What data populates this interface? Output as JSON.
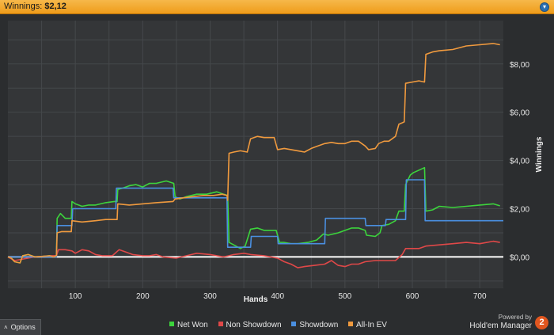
{
  "window": {
    "title_label": "Winnings:",
    "title_value": "$2,12",
    "help_icon": "info-icon"
  },
  "options": {
    "label": "Options",
    "icon": "chevron-up-icon"
  },
  "powered": {
    "line1": "Powered by",
    "line2": "Hold'em Manager",
    "logo_text": "2"
  },
  "chart_data": {
    "type": "line",
    "xlabel": "Hands",
    "ylabel": "Winnings",
    "xlim": [
      0,
      735
    ],
    "ylim": [
      -1.3,
      9.8
    ],
    "xticks": [
      100,
      200,
      300,
      400,
      500,
      600,
      700
    ],
    "yticks": [
      {
        "value": 0,
        "label": "$0,00"
      },
      {
        "value": 2,
        "label": "$2,00"
      },
      {
        "value": 4,
        "label": "$4,00"
      },
      {
        "value": 6,
        "label": "$6,00"
      },
      {
        "value": 8,
        "label": "$8,00"
      }
    ],
    "grid": true,
    "legend_position": "bottom",
    "series": [
      {
        "name": "Net Won",
        "color": "#3cd43c",
        "points": [
          [
            0,
            0
          ],
          [
            5,
            -0.05
          ],
          [
            10,
            -0.2
          ],
          [
            18,
            -0.25
          ],
          [
            22,
            0.05
          ],
          [
            30,
            0.1
          ],
          [
            40,
            0
          ],
          [
            50,
            0.02
          ],
          [
            62,
            0.05
          ],
          [
            68,
            0
          ],
          [
            72,
            0.05
          ],
          [
            73,
            1.6
          ],
          [
            78,
            1.8
          ],
          [
            85,
            1.6
          ],
          [
            94,
            1.6
          ],
          [
            95,
            2.3
          ],
          [
            100,
            2.2
          ],
          [
            110,
            2.1
          ],
          [
            120,
            2.15
          ],
          [
            130,
            2.15
          ],
          [
            145,
            2.25
          ],
          [
            158,
            2.3
          ],
          [
            162,
            2.3
          ],
          [
            163,
            2.8
          ],
          [
            170,
            2.85
          ],
          [
            180,
            2.95
          ],
          [
            190,
            3.0
          ],
          [
            200,
            2.9
          ],
          [
            210,
            3.05
          ],
          [
            220,
            3.05
          ],
          [
            235,
            3.15
          ],
          [
            246,
            3.05
          ],
          [
            248,
            2.5
          ],
          [
            255,
            2.4
          ],
          [
            265,
            2.5
          ],
          [
            280,
            2.6
          ],
          [
            295,
            2.6
          ],
          [
            310,
            2.7
          ],
          [
            320,
            2.6
          ],
          [
            326,
            2.55
          ],
          [
            328,
            0.6
          ],
          [
            335,
            0.5
          ],
          [
            345,
            0.35
          ],
          [
            352,
            0.45
          ],
          [
            360,
            1.15
          ],
          [
            370,
            1.2
          ],
          [
            380,
            1.1
          ],
          [
            398,
            1.1
          ],
          [
            403,
            0.6
          ],
          [
            410,
            0.6
          ],
          [
            420,
            0.55
          ],
          [
            430,
            0.55
          ],
          [
            445,
            0.6
          ],
          [
            458,
            0.7
          ],
          [
            468,
            0.95
          ],
          [
            475,
            0.9
          ],
          [
            490,
            1.0
          ],
          [
            500,
            1.1
          ],
          [
            510,
            1.2
          ],
          [
            520,
            1.2
          ],
          [
            530,
            1.1
          ],
          [
            532,
            0.9
          ],
          [
            545,
            0.85
          ],
          [
            552,
            1.0
          ],
          [
            555,
            1.3
          ],
          [
            565,
            1.35
          ],
          [
            575,
            1.5
          ],
          [
            580,
            1.9
          ],
          [
            588,
            1.9
          ],
          [
            590,
            3.0
          ],
          [
            597,
            3.4
          ],
          [
            602,
            3.5
          ],
          [
            610,
            3.6
          ],
          [
            618,
            3.7
          ],
          [
            620,
            1.9
          ],
          [
            630,
            1.95
          ],
          [
            640,
            2.1
          ],
          [
            660,
            2.05
          ],
          [
            680,
            2.1
          ],
          [
            700,
            2.15
          ],
          [
            720,
            2.2
          ],
          [
            730,
            2.12
          ]
        ]
      },
      {
        "name": "Non Showdown",
        "color": "#e04848",
        "points": [
          [
            0,
            0
          ],
          [
            10,
            -0.15
          ],
          [
            20,
            -0.1
          ],
          [
            40,
            0
          ],
          [
            65,
            0.05
          ],
          [
            72,
            0.05
          ],
          [
            75,
            0.3
          ],
          [
            85,
            0.3
          ],
          [
            95,
            0.25
          ],
          [
            100,
            0.15
          ],
          [
            110,
            0.3
          ],
          [
            120,
            0.25
          ],
          [
            130,
            0.1
          ],
          [
            140,
            0.05
          ],
          [
            155,
            0.05
          ],
          [
            165,
            0.3
          ],
          [
            175,
            0.2
          ],
          [
            185,
            0.1
          ],
          [
            200,
            0.05
          ],
          [
            210,
            0.05
          ],
          [
            220,
            0.1
          ],
          [
            230,
            0.0
          ],
          [
            250,
            -0.05
          ],
          [
            265,
            0.05
          ],
          [
            280,
            0.15
          ],
          [
            300,
            0.1
          ],
          [
            320,
            0.0
          ],
          [
            328,
            0.05
          ],
          [
            335,
            0.1
          ],
          [
            350,
            0.15
          ],
          [
            360,
            0.1
          ],
          [
            380,
            0.05
          ],
          [
            400,
            -0.05
          ],
          [
            410,
            -0.2
          ],
          [
            420,
            -0.3
          ],
          [
            430,
            -0.45
          ],
          [
            440,
            -0.4
          ],
          [
            455,
            -0.35
          ],
          [
            470,
            -0.3
          ],
          [
            480,
            -0.15
          ],
          [
            490,
            -0.35
          ],
          [
            500,
            -0.4
          ],
          [
            510,
            -0.3
          ],
          [
            520,
            -0.3
          ],
          [
            530,
            -0.2
          ],
          [
            545,
            -0.15
          ],
          [
            560,
            -0.15
          ],
          [
            575,
            -0.15
          ],
          [
            585,
            0.1
          ],
          [
            590,
            0.35
          ],
          [
            600,
            0.35
          ],
          [
            610,
            0.35
          ],
          [
            620,
            0.45
          ],
          [
            640,
            0.5
          ],
          [
            660,
            0.55
          ],
          [
            680,
            0.6
          ],
          [
            700,
            0.55
          ],
          [
            720,
            0.65
          ],
          [
            730,
            0.6
          ]
        ]
      },
      {
        "name": "Showdown",
        "color": "#4a8fe0",
        "points": [
          [
            0,
            0
          ],
          [
            72,
            0
          ],
          [
            73,
            1.3
          ],
          [
            95,
            1.3
          ],
          [
            96,
            2.0
          ],
          [
            160,
            2.0
          ],
          [
            161,
            2.85
          ],
          [
            245,
            2.85
          ],
          [
            246,
            2.45
          ],
          [
            325,
            2.45
          ],
          [
            326,
            0.4
          ],
          [
            360,
            0.4
          ],
          [
            361,
            0.85
          ],
          [
            400,
            0.85
          ],
          [
            401,
            0.55
          ],
          [
            470,
            0.55
          ],
          [
            471,
            1.6
          ],
          [
            530,
            1.6
          ],
          [
            531,
            1.3
          ],
          [
            560,
            1.3
          ],
          [
            561,
            1.55
          ],
          [
            590,
            1.55
          ],
          [
            591,
            3.2
          ],
          [
            618,
            3.2
          ],
          [
            619,
            1.5
          ],
          [
            735,
            1.5
          ]
        ]
      },
      {
        "name": "All-In EV",
        "color": "#f09a3e",
        "points": [
          [
            0,
            0
          ],
          [
            5,
            -0.05
          ],
          [
            10,
            -0.2
          ],
          [
            18,
            -0.25
          ],
          [
            22,
            0.05
          ],
          [
            30,
            0.1
          ],
          [
            40,
            0
          ],
          [
            50,
            0.02
          ],
          [
            62,
            0.05
          ],
          [
            68,
            0
          ],
          [
            72,
            0.05
          ],
          [
            73,
            1.0
          ],
          [
            80,
            1.05
          ],
          [
            90,
            1.05
          ],
          [
            94,
            1.05
          ],
          [
            95,
            1.5
          ],
          [
            110,
            1.45
          ],
          [
            130,
            1.5
          ],
          [
            145,
            1.55
          ],
          [
            160,
            1.55
          ],
          [
            162,
            1.55
          ],
          [
            163,
            2.2
          ],
          [
            180,
            2.15
          ],
          [
            200,
            2.2
          ],
          [
            220,
            2.25
          ],
          [
            245,
            2.3
          ],
          [
            248,
            2.4
          ],
          [
            260,
            2.45
          ],
          [
            275,
            2.5
          ],
          [
            290,
            2.55
          ],
          [
            305,
            2.55
          ],
          [
            318,
            2.6
          ],
          [
            325,
            2.55
          ],
          [
            326,
            2.35
          ],
          [
            328,
            4.3
          ],
          [
            335,
            4.35
          ],
          [
            345,
            4.4
          ],
          [
            355,
            4.35
          ],
          [
            360,
            4.9
          ],
          [
            370,
            5.0
          ],
          [
            380,
            4.95
          ],
          [
            395,
            4.95
          ],
          [
            400,
            4.45
          ],
          [
            410,
            4.5
          ],
          [
            420,
            4.45
          ],
          [
            430,
            4.4
          ],
          [
            440,
            4.35
          ],
          [
            450,
            4.5
          ],
          [
            460,
            4.6
          ],
          [
            470,
            4.7
          ],
          [
            480,
            4.75
          ],
          [
            490,
            4.7
          ],
          [
            500,
            4.7
          ],
          [
            510,
            4.8
          ],
          [
            520,
            4.8
          ],
          [
            530,
            4.6
          ],
          [
            535,
            4.45
          ],
          [
            545,
            4.5
          ],
          [
            550,
            4.7
          ],
          [
            558,
            4.8
          ],
          [
            565,
            4.8
          ],
          [
            575,
            5.0
          ],
          [
            580,
            5.5
          ],
          [
            588,
            5.6
          ],
          [
            590,
            7.2
          ],
          [
            600,
            7.25
          ],
          [
            610,
            7.3
          ],
          [
            618,
            7.25
          ],
          [
            620,
            8.4
          ],
          [
            630,
            8.5
          ],
          [
            640,
            8.55
          ],
          [
            660,
            8.6
          ],
          [
            680,
            8.75
          ],
          [
            700,
            8.8
          ],
          [
            720,
            8.85
          ],
          [
            730,
            8.8
          ]
        ]
      }
    ]
  }
}
